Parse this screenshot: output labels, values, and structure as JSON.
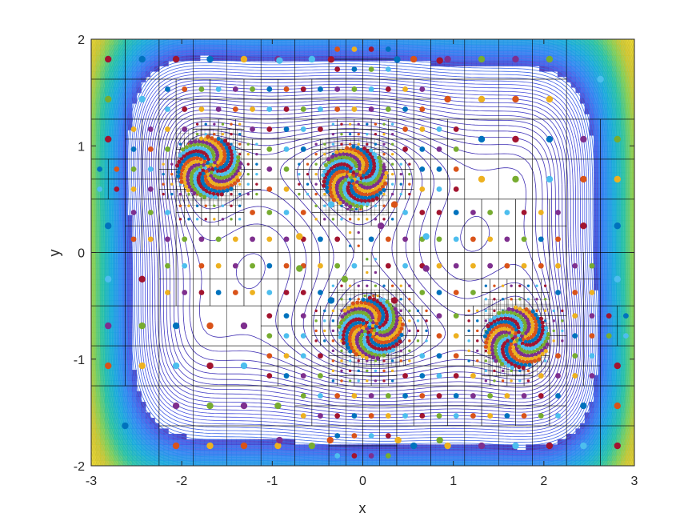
{
  "chart_data": {
    "type": "scatter",
    "title": "",
    "xlabel": "x",
    "ylabel": "y",
    "xlim": [
      -3,
      3
    ],
    "ylim": [
      -2,
      2
    ],
    "x_ticks": [
      -3,
      -2,
      -1,
      0,
      1,
      2,
      3
    ],
    "y_ticks": [
      -2,
      -1,
      0,
      1,
      2
    ],
    "x_tick_labels": [
      "-3",
      "-2",
      "-1",
      "0",
      "1",
      "2",
      "3"
    ],
    "y_tick_labels": [
      "-2",
      "-1",
      "0",
      "1",
      "2"
    ],
    "grid": false,
    "legend": "none",
    "background": "contour",
    "contour_function": "six-hump camel back",
    "contour_colormap": [
      "#3e26a8",
      "#4653e3",
      "#2e84f2",
      "#16a9da",
      "#25c0a4",
      "#7ecd55",
      "#d2c32b",
      "#fcde26"
    ],
    "point_colors": [
      "#0072bd",
      "#d95319",
      "#edb120",
      "#7e2f8e",
      "#77ac30",
      "#4dbeee",
      "#a2142f"
    ],
    "local_minima": [
      {
        "x": 0.09,
        "y": -0.71
      },
      {
        "x": -0.09,
        "y": 0.71
      },
      {
        "x": -1.7,
        "y": 0.8
      },
      {
        "x": 1.7,
        "y": -0.8
      }
    ],
    "sample_points": [
      {
        "x": 0.2,
        "y": 0.25
      },
      {
        "x": -0.2,
        "y": -0.25
      },
      {
        "x": -0.35,
        "y": 0.45
      },
      {
        "x": 0.35,
        "y": -0.45
      },
      {
        "x": -0.35,
        "y": -0.45
      },
      {
        "x": 0.35,
        "y": 0.45
      },
      {
        "x": -0.7,
        "y": 0.15
      },
      {
        "x": 0.7,
        "y": -0.15
      },
      {
        "x": -0.7,
        "y": -0.15
      },
      {
        "x": 0.7,
        "y": 0.15
      },
      {
        "x": -0.35,
        "y": 1.81
      },
      {
        "x": 0.38,
        "y": 1.81
      },
      {
        "x": -0.36,
        "y": -1.76
      },
      {
        "x": 0.39,
        "y": -1.76
      },
      {
        "x": -0.92,
        "y": -1.76
      },
      {
        "x": 0.85,
        "y": -1.76
      },
      {
        "x": -0.92,
        "y": 1.8
      },
      {
        "x": 0.85,
        "y": 1.8
      }
    ]
  }
}
